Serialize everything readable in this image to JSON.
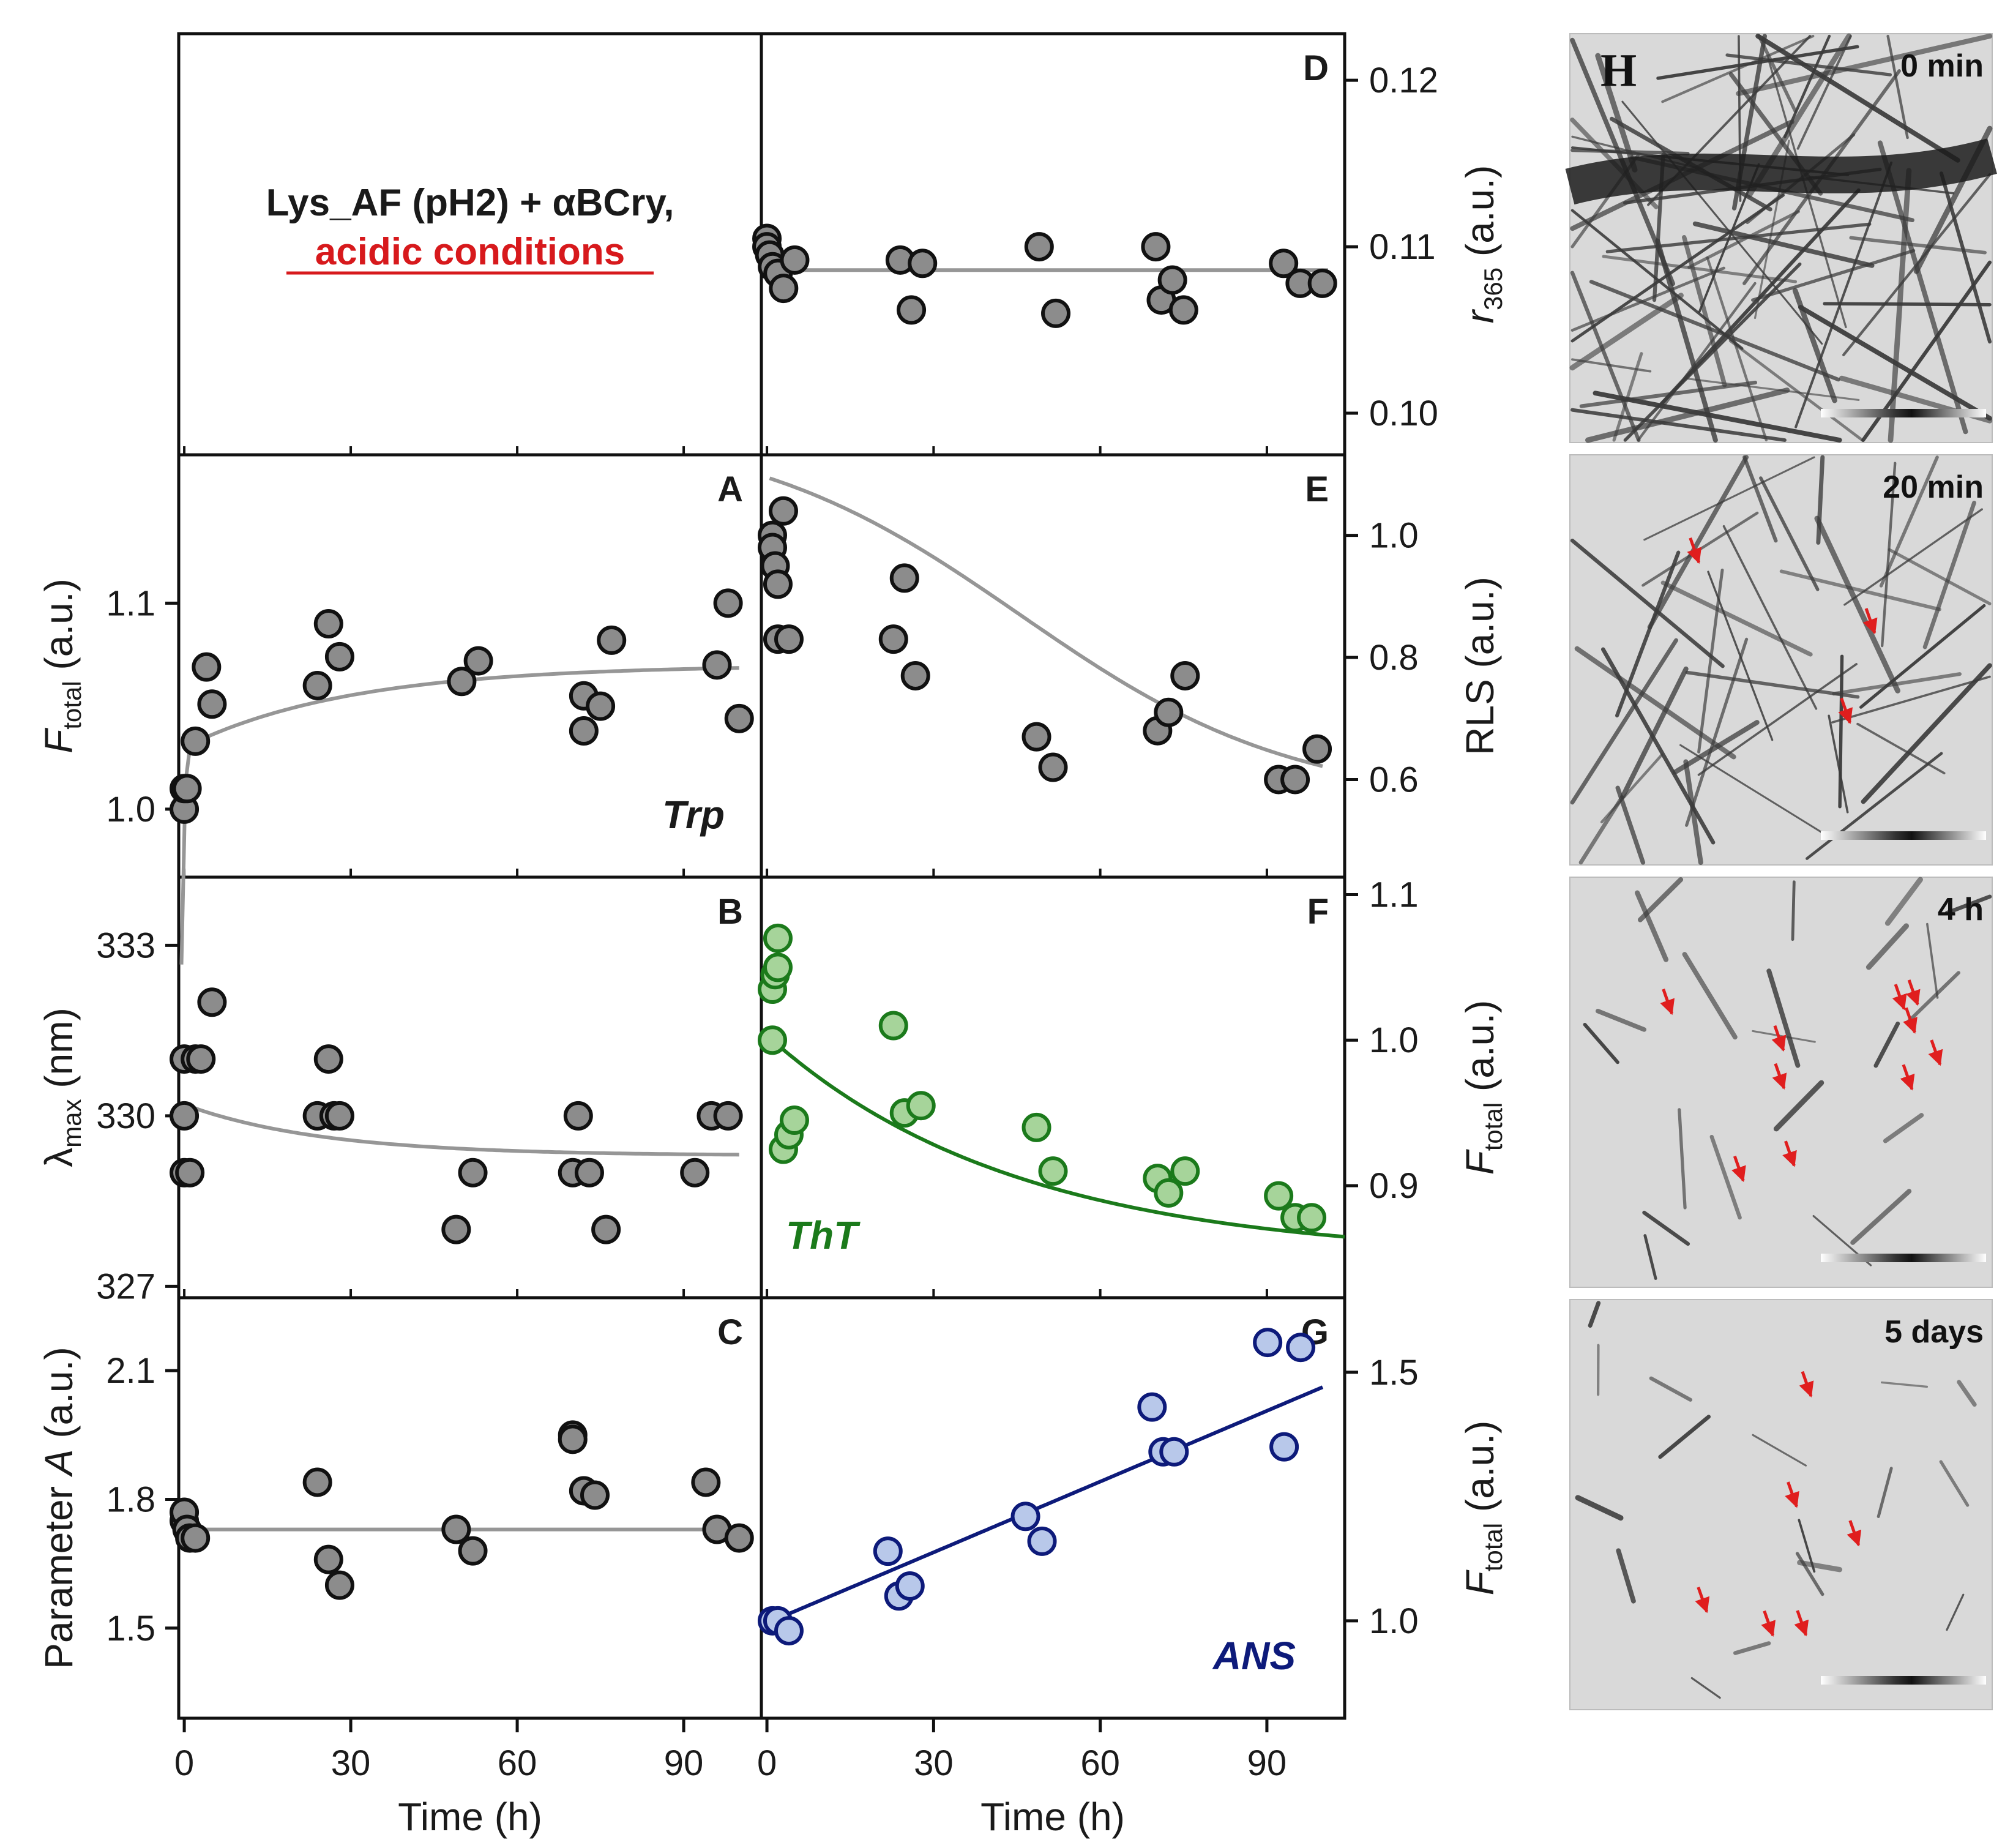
{
  "figure": {
    "condition_title": "Lys_AF (pH2) + αBCry,",
    "condition_subtitle": "acidic conditions",
    "subtitle_color": "#d7191c",
    "x_axis_title": "Time (h)",
    "x_axis_label_left": "Time (h)",
    "x_axis_label_right": "Time (h)"
  },
  "chart_data": [
    {
      "panel": "A",
      "type": "scatter",
      "series_label": "Trp",
      "ylabel_main": "F",
      "ylabel_sub": "total",
      "ylabel_unit": " (a.u.)",
      "xlim": [
        -1,
        104
      ],
      "ylim": [
        0.967,
        1.172
      ],
      "yticks": [
        1.0,
        1.1
      ],
      "ytick_labels": [
        "1.0",
        "1.1"
      ],
      "x": [
        0,
        0,
        0.5,
        2,
        4,
        5,
        24,
        26,
        28,
        50,
        53,
        72,
        72,
        75,
        77,
        96,
        98,
        100
      ],
      "y": [
        1.0,
        1.01,
        1.01,
        1.033,
        1.069,
        1.051,
        1.06,
        1.09,
        1.074,
        1.062,
        1.072,
        1.055,
        1.038,
        1.05,
        1.082,
        1.07,
        1.1,
        1.044
      ],
      "fit": "exp_rise",
      "fit_params": {
        "a": 1.0,
        "b": 0.03,
        "tau": 0.4,
        "c": 0.04,
        "tau2": 30
      },
      "marker_color": "#8c8c8c",
      "line_color": "#969696"
    },
    {
      "panel": "B",
      "type": "scatter",
      "ylabel_main": "λ",
      "ylabel_sub": "max",
      "ylabel_unit": " (nm)",
      "xlim": [
        -1,
        104
      ],
      "ylim": [
        326.8,
        334.2
      ],
      "yticks": [
        327,
        330,
        333
      ],
      "ytick_labels": [
        "327",
        "330",
        "333"
      ],
      "x": [
        0,
        0,
        0,
        1,
        2,
        3,
        5,
        24,
        26,
        27,
        28,
        49,
        52,
        70,
        71,
        73,
        76,
        92,
        95,
        98
      ],
      "y": [
        329.0,
        330.0,
        331.0,
        329.0,
        331.0,
        331.0,
        332.0,
        330.0,
        331.0,
        330.0,
        330.0,
        328.0,
        329.0,
        329.0,
        330.0,
        329.0,
        328.0,
        329.0,
        330.0,
        330.0
      ],
      "fit": "exp_decay",
      "fit_params": {
        "a": 329.3,
        "b": 0.9,
        "tau": 25
      },
      "marker_color": "#8c8c8c",
      "line_color": "#969696"
    },
    {
      "panel": "C",
      "type": "scatter",
      "ylabel_main": "Parameter ",
      "ylabel_italic": "A",
      "ylabel_unit": " (a.u.)",
      "xlim": [
        -1,
        104
      ],
      "ylim": [
        1.29,
        2.27
      ],
      "yticks": [
        1.5,
        1.8,
        2.1
      ],
      "ytick_labels": [
        "1.5",
        "1.8",
        "2.1"
      ],
      "x": [
        0,
        0,
        0.5,
        1,
        2,
        24,
        26,
        28,
        49,
        52,
        70,
        70,
        72,
        74,
        94,
        96,
        100
      ],
      "y": [
        1.75,
        1.77,
        1.73,
        1.71,
        1.71,
        1.84,
        1.66,
        1.6,
        1.73,
        1.68,
        1.95,
        1.94,
        1.82,
        1.81,
        1.84,
        1.73,
        1.71
      ],
      "fit": "constant",
      "fit_params": {
        "a": 1.73
      },
      "marker_color": "#8c8c8c",
      "line_color": "#969696"
    },
    {
      "panel": "D",
      "type": "scatter",
      "ylabel_main": "r",
      "ylabel_sub": "365",
      "ylabel_unit": " (a.u.)",
      "xlim": [
        -1,
        104
      ],
      "ylim": [
        0.0975,
        0.1228
      ],
      "yticks": [
        0.1,
        0.11,
        0.12
      ],
      "ytick_labels": [
        "0.10",
        "0.11",
        "0.12"
      ],
      "x": [
        0,
        0,
        0.5,
        1,
        2,
        3,
        5,
        24,
        26,
        28,
        49,
        52,
        70,
        71,
        73,
        75,
        93,
        96,
        100
      ],
      "y": [
        0.1105,
        0.11,
        0.1095,
        0.1088,
        0.1084,
        0.1075,
        0.1092,
        0.1092,
        0.1062,
        0.109,
        0.11,
        0.106,
        0.11,
        0.1068,
        0.108,
        0.1062,
        0.109,
        0.1078,
        0.1078
      ],
      "fit": "constant",
      "fit_params": {
        "a": 0.1086
      },
      "marker_color": "#8c8c8c",
      "line_color": "#969696"
    },
    {
      "panel": "E",
      "type": "scatter",
      "ylabel_main": "RLS (a.u.)",
      "xlim": [
        -2,
        104
      ],
      "ylim": [
        0.44,
        1.132
      ],
      "yticks": [
        0.6,
        0.8,
        1.0
      ],
      "ytick_labels": [
        "0.6",
        "0.8",
        "1.0"
      ],
      "x": [
        0,
        0,
        0.5,
        1,
        1,
        2,
        3,
        22,
        24,
        26,
        48,
        51,
        70,
        72,
        75,
        92,
        95,
        99
      ],
      "y": [
        1.0,
        0.98,
        0.95,
        0.92,
        0.83,
        1.04,
        0.83,
        0.83,
        0.93,
        0.77,
        0.67,
        0.62,
        0.68,
        0.71,
        0.77,
        0.6,
        0.6,
        0.65
      ],
      "fit": "sigmoid_decay",
      "fit_params": {
        "a": 0.56,
        "b": 0.62,
        "t0": 45,
        "w": 25
      },
      "marker_color": "#8c8c8c",
      "line_color": "#969696"
    },
    {
      "panel": "F",
      "type": "scatter",
      "series_label": "ThT",
      "ylabel_main": "F",
      "ylabel_sub": "total",
      "ylabel_unit": " (a.u.)",
      "xlim": [
        -2,
        104
      ],
      "ylim": [
        0.823,
        1.112
      ],
      "yticks": [
        0.9,
        1.0,
        1.1
      ],
      "ytick_labels": [
        "0.9",
        "1.0",
        "1.1"
      ],
      "x": [
        0,
        0,
        0.5,
        1,
        1,
        2,
        3,
        4,
        22,
        24,
        27,
        48,
        51,
        70,
        72,
        75,
        92,
        95,
        98
      ],
      "y": [
        1.0,
        1.035,
        1.045,
        1.05,
        1.07,
        0.925,
        0.935,
        0.945,
        1.01,
        0.95,
        0.955,
        0.94,
        0.91,
        0.905,
        0.895,
        0.91,
        0.893,
        0.878,
        0.878
      ],
      "fit": "exp_decay",
      "fit_params": {
        "a": 0.85,
        "b": 0.15,
        "tau": 45
      },
      "marker_color": "#a6d49a",
      "marker_edge": "#1b7a1b",
      "line_color": "#1b7a1b"
    },
    {
      "panel": "G",
      "type": "scatter",
      "series_label": "ANS",
      "ylabel_main": "F",
      "ylabel_sub": "total",
      "ylabel_unit": " (a.u.)",
      "xlim": [
        -2,
        104
      ],
      "ylim": [
        0.804,
        1.65
      ],
      "yticks": [
        1.0,
        1.5
      ],
      "ytick_labels": [
        "1.0",
        "1.5"
      ],
      "x": [
        0,
        1,
        3,
        21,
        23,
        25,
        46,
        49,
        69,
        71,
        73,
        90,
        93,
        96
      ],
      "y": [
        1.0,
        1.0,
        0.98,
        1.14,
        1.05,
        1.07,
        1.21,
        1.16,
        1.43,
        1.34,
        1.34,
        1.56,
        1.35,
        1.55
      ],
      "fit": "linear",
      "fit_params": {
        "a": 1.0,
        "b": 0.0047
      },
      "marker_color": "#b8c8ea",
      "marker_edge": "#0d1a7a",
      "line_color": "#0d1a7a"
    }
  ],
  "x_axis": {
    "left_ticks": [
      0,
      30,
      60,
      90
    ],
    "left_tick_labels": [
      "0",
      "30",
      "60",
      "90"
    ],
    "right_ticks": [
      0,
      30,
      60,
      90
    ],
    "right_tick_labels": [
      "0",
      "30",
      "60",
      "90"
    ]
  },
  "tem_panel": {
    "panel_letter": "H",
    "frames": [
      {
        "label": "0 min",
        "fibril_density": "dense",
        "arrow_count": 0
      },
      {
        "label": "20 min",
        "fibril_density": "medium",
        "arrow_count": 3
      },
      {
        "label": "4 h",
        "fibril_density": "fragmented",
        "arrow_count": 10
      },
      {
        "label": "5 days",
        "fibril_density": "short fragments",
        "arrow_count": 6
      }
    ],
    "arrow_color": "#e01e1e"
  }
}
